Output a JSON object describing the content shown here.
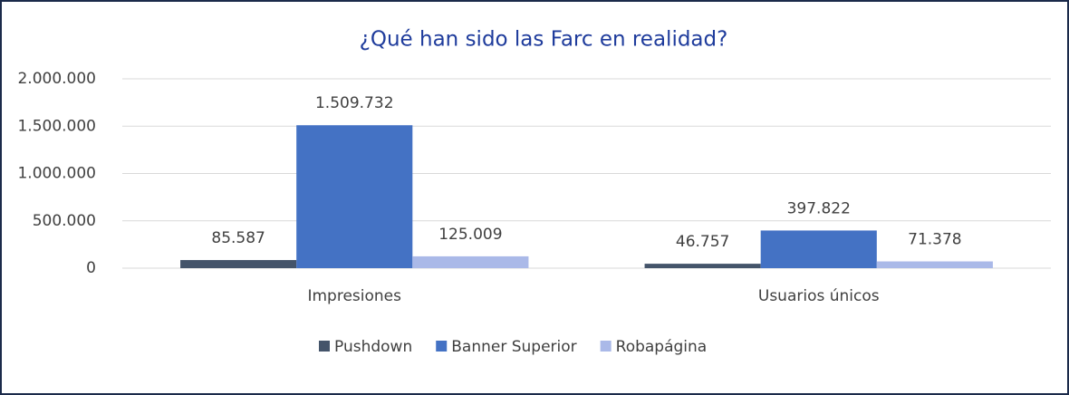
{
  "chart_data": {
    "type": "bar",
    "title": "¿Qué han sido las Farc en realidad?",
    "categories": [
      "Impresiones",
      "Usuarios únicos"
    ],
    "series": [
      {
        "name": "Pushdown",
        "color": "#44546a",
        "values": [
          85587,
          46757
        ],
        "value_labels": [
          "85.587",
          "46.757"
        ]
      },
      {
        "name": "Banner Superior",
        "color": "#4472c4",
        "values": [
          1509732,
          397822
        ],
        "value_labels": [
          "1.509.732",
          "397.822"
        ]
      },
      {
        "name": "Robapágina",
        "color": "#aab9e8",
        "values": [
          125009,
          71378
        ],
        "value_labels": [
          "125.009",
          "71.378"
        ]
      }
    ],
    "ylim": [
      0,
      2000000
    ],
    "yticks": [
      0,
      {
        "value": 500000,
        "label": "500.000"
      },
      {
        "value": 1000000,
        "label": "1.000.000"
      },
      {
        "value": 1500000,
        "label": "1.500.000"
      },
      {
        "value": 2000000,
        "label": "2.000.000"
      }
    ],
    "grid": true,
    "legend": "bottom"
  }
}
